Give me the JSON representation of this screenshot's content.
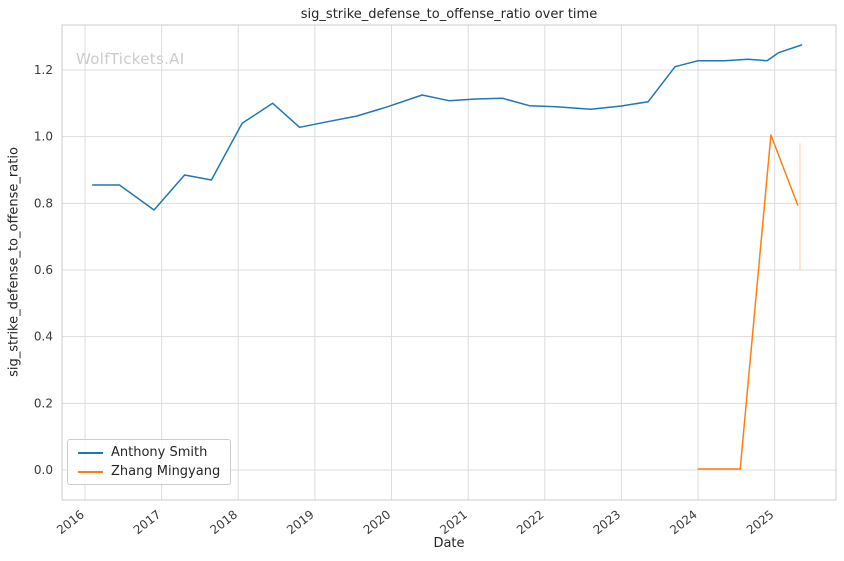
{
  "page": {
    "watermark": "WolfTickets.AI"
  },
  "chart_data": {
    "type": "line",
    "title": "sig_strike_defense_to_offense_ratio over time",
    "xlabel": "Date",
    "ylabel": "sig_strike_defense_to_offense_ratio",
    "xlim": [
      2015.7,
      2025.8
    ],
    "ylim": [
      -0.09,
      1.335
    ],
    "x_ticks": [
      2016,
      2017,
      2018,
      2019,
      2020,
      2021,
      2022,
      2023,
      2024,
      2025
    ],
    "y_ticks": [
      0.0,
      0.2,
      0.4,
      0.6,
      0.8,
      1.0,
      1.2
    ],
    "grid": true,
    "grid_color": "#dddddd",
    "border_color": "#cccccc",
    "legend_position": "lower left",
    "series": [
      {
        "name": "Anthony Smith",
        "color": "#1f77b4",
        "x": [
          2016.1,
          2016.45,
          2016.9,
          2017.3,
          2017.65,
          2018.05,
          2018.45,
          2018.8,
          2019.1,
          2019.55,
          2019.95,
          2020.4,
          2020.75,
          2021.1,
          2021.45,
          2021.8,
          2022.15,
          2022.6,
          2023.0,
          2023.35,
          2023.7,
          2024.0,
          2024.35,
          2024.65,
          2024.9,
          2025.05,
          2025.35
        ],
        "y": [
          0.855,
          0.855,
          0.78,
          0.885,
          0.87,
          1.04,
          1.1,
          1.028,
          1.042,
          1.062,
          1.09,
          1.125,
          1.108,
          1.113,
          1.115,
          1.093,
          1.09,
          1.082,
          1.092,
          1.105,
          1.21,
          1.228,
          1.228,
          1.232,
          1.228,
          1.252,
          1.275
        ]
      },
      {
        "name": "Zhang Mingyang",
        "color": "#ff7f0e",
        "x": [
          2024.0,
          2024.3,
          2024.55,
          2024.95,
          2025.3
        ],
        "y": [
          0.003,
          0.003,
          0.003,
          1.005,
          0.795
        ]
      }
    ],
    "annotations": [
      {
        "type": "vline_segment",
        "x": 2025.33,
        "y_min": 0.6,
        "y_max": 0.98,
        "color": "#ff7f0e",
        "opacity": 0.25
      }
    ]
  }
}
